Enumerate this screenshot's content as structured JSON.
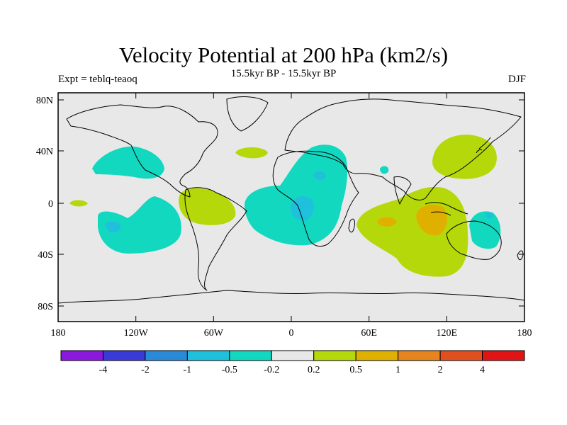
{
  "title": "Velocity Potential at 200 hPa (km2/s)",
  "subtitle": "15.5kyr BP - 15.5kyr BP",
  "left_label": "Expt = teblq-teaoq",
  "right_label": "DJF",
  "lat_ticks": [
    "80N",
    "40N",
    "0",
    "40S",
    "80S"
  ],
  "lon_ticks": [
    "180",
    "120W",
    "60W",
    "0",
    "60E",
    "120E",
    "180"
  ],
  "colorbar": {
    "colors": [
      "#8a19dd",
      "#3a3ad6",
      "#2a8ad8",
      "#1ec0dc",
      "#12d8c0",
      "#e8e8e8",
      "#b5d80a",
      "#e0b000",
      "#e8841e",
      "#e0501e",
      "#e01414"
    ],
    "labels": [
      "-4",
      "-2",
      "-1",
      "-0.5",
      "-0.2",
      "0.2",
      "0.5",
      "1",
      "2",
      "4"
    ]
  },
  "fill_colors": {
    "ocean": "#e8e8e8",
    "neg_02": "#12d8c0",
    "neg_05": "#1ec0dc",
    "pos_02": "#b5d80a",
    "pos_05": "#e0b000",
    "pos_1": "#e8841e"
  }
}
